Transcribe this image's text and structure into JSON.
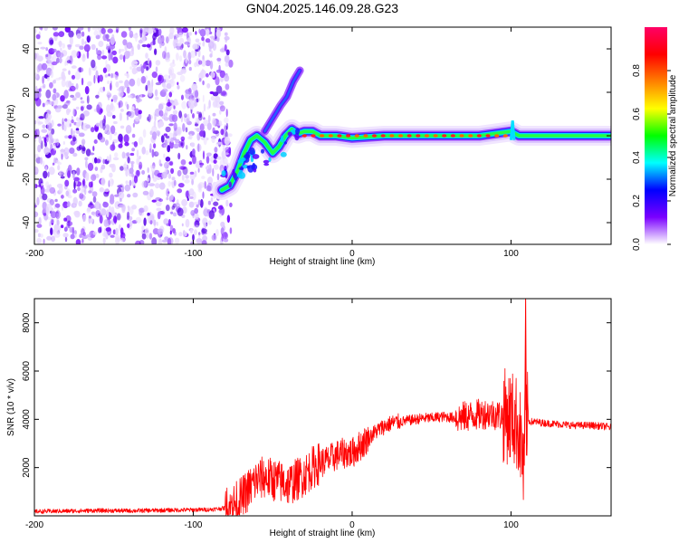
{
  "title": "GN04.2025.146.09.28.G23",
  "chart_data": [
    {
      "type": "heatmap",
      "description_key": "spectrogram",
      "xlabel": "Height of straight line (km)",
      "ylabel": "Frequency (Hz)",
      "xlim": [
        -200,
        163
      ],
      "ylim": [
        -50,
        50
      ],
      "x_ticks": [
        -200,
        -100,
        0,
        100
      ],
      "y_ticks": [
        -40,
        -20,
        0,
        20,
        40
      ],
      "noise_region_x": [
        -200,
        -82
      ],
      "track": [
        {
          "x": -82,
          "y": -25
        },
        {
          "x": -77,
          "y": -23
        },
        {
          "x": -72,
          "y": -16
        },
        {
          "x": -68,
          "y": -8
        },
        {
          "x": -64,
          "y": -2
        },
        {
          "x": -60,
          "y": 0
        },
        {
          "x": -55,
          "y": -3
        },
        {
          "x": -50,
          "y": -8
        },
        {
          "x": -46,
          "y": -5
        },
        {
          "x": -42,
          "y": 0
        },
        {
          "x": -38,
          "y": 3
        },
        {
          "x": -34,
          "y": 1
        },
        {
          "x": -30,
          "y": 2
        },
        {
          "x": -25,
          "y": 2
        },
        {
          "x": -20,
          "y": 0
        },
        {
          "x": -10,
          "y": 0
        },
        {
          "x": 0,
          "y": -1
        },
        {
          "x": 20,
          "y": 0
        },
        {
          "x": 50,
          "y": 0
        },
        {
          "x": 80,
          "y": 0
        },
        {
          "x": 100,
          "y": 2
        },
        {
          "x": 105,
          "y": 0
        },
        {
          "x": 163,
          "y": 0
        }
      ],
      "branch": [
        {
          "x": -55,
          "y": 2
        },
        {
          "x": -50,
          "y": 8
        },
        {
          "x": -45,
          "y": 14
        },
        {
          "x": -41,
          "y": 18
        },
        {
          "x": -37,
          "y": 25
        },
        {
          "x": -33,
          "y": 30
        }
      ],
      "colorbar": {
        "label": "Normalized spectral amplitude",
        "range": [
          0,
          1
        ],
        "ticks": [
          0.0,
          0.2,
          0.4,
          0.6,
          0.8
        ],
        "tick_labels": [
          "0.0",
          "0.2",
          "0.4",
          "0.6",
          "0.8"
        ],
        "colors": [
          "#ffffff",
          "#7a00ff",
          "#0000ff",
          "#00ffff",
          "#00ff00",
          "#ffff00",
          "#ff8000",
          "#ff0000",
          "#ff0066"
        ]
      }
    },
    {
      "type": "line",
      "xlabel": "Height of straight line (km)",
      "ylabel": "SNR (10 * v/v)",
      "xlim": [
        -200,
        163
      ],
      "ylim": [
        0,
        9000
      ],
      "x_ticks": [
        -200,
        -100,
        0,
        100
      ],
      "y_ticks": [
        2000,
        4000,
        6000,
        8000
      ],
      "line_color": "#ff0000",
      "series": [
        {
          "x": [
            -200,
            -180,
            -160,
            -140,
            -120,
            -100,
            -90,
            -80,
            -75,
            -70,
            -65,
            -60,
            -55,
            -50,
            -45,
            -40,
            -35,
            -30,
            -25,
            -20,
            -15,
            -10,
            -5,
            0,
            5,
            10,
            15,
            20,
            25,
            30,
            35,
            40,
            45,
            50,
            55,
            60,
            65,
            70,
            75,
            80,
            85,
            90,
            95,
            100,
            103,
            105,
            107,
            108,
            109,
            110,
            112,
            115,
            120,
            130,
            140,
            150,
            160,
            163
          ],
          "y": [
            180,
            200,
            220,
            210,
            230,
            250,
            260,
            320,
            450,
            700,
            1100,
            1500,
            1600,
            1500,
            1400,
            1300,
            1500,
            1700,
            2000,
            2200,
            2300,
            2500,
            2600,
            2600,
            2900,
            3200,
            3500,
            3700,
            3850,
            3900,
            3950,
            4000,
            4050,
            4050,
            4100,
            4100,
            4050,
            4100,
            4150,
            4200,
            4250,
            4200,
            4150,
            4100,
            3900,
            3600,
            2800,
            1500,
            4500,
            4000,
            3900,
            3900,
            3850,
            3800,
            3750,
            3750,
            3700,
            3650
          ]
        }
      ]
    }
  ]
}
